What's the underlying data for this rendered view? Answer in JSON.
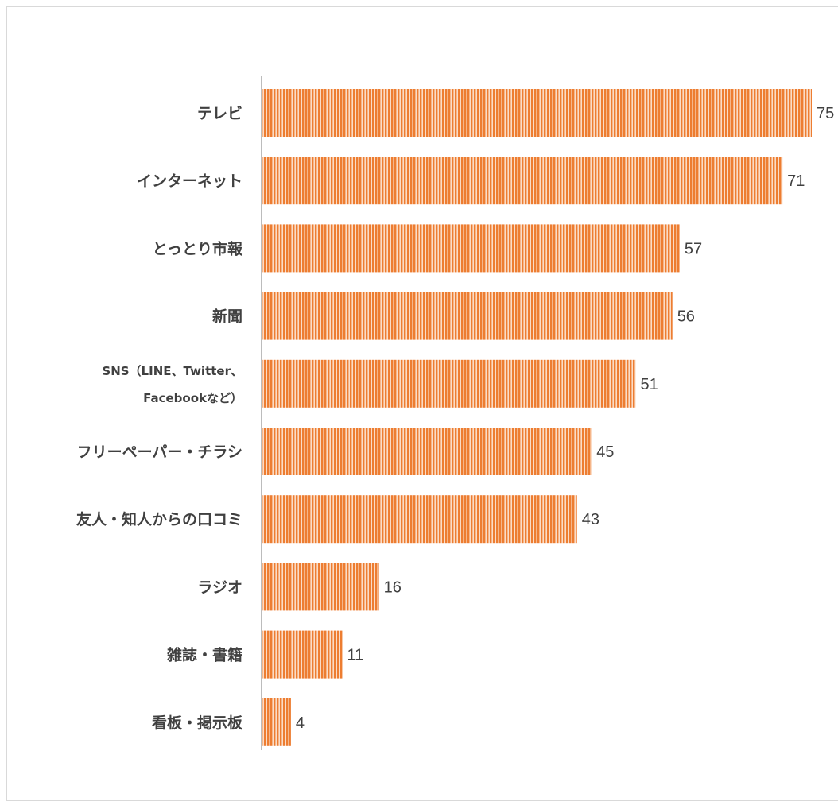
{
  "chart_data": {
    "type": "bar",
    "orientation": "horizontal",
    "title": "",
    "xlabel": "",
    "ylabel": "",
    "xlim": [
      0,
      75
    ],
    "grid": false,
    "legend": "none",
    "bar_color": "#ED7D31",
    "bar_pattern": "vertical-stripes",
    "categories": [
      "テレビ",
      "インターネット",
      "とっとり市報",
      "新聞",
      "SNS（LINE、Twitter、Facebookなど）",
      "フリーペーパー・チラシ",
      "友人・知人からの口コミ",
      "ラジオ",
      "雑誌・書籍",
      "看板・掲示板"
    ],
    "category_lines": [
      [
        "テレビ"
      ],
      [
        "インターネット"
      ],
      [
        "とっとり市報"
      ],
      [
        "新聞"
      ],
      [
        "SNS（LINE、Twitter、",
        "Facebookなど）"
      ],
      [
        "フリーペーパー・チラシ"
      ],
      [
        "友人・知人からの口コミ"
      ],
      [
        "ラジオ"
      ],
      [
        "雑誌・書籍"
      ],
      [
        "看板・掲示板"
      ]
    ],
    "values": [
      75,
      71,
      57,
      56,
      51,
      45,
      43,
      16,
      11,
      4
    ]
  }
}
